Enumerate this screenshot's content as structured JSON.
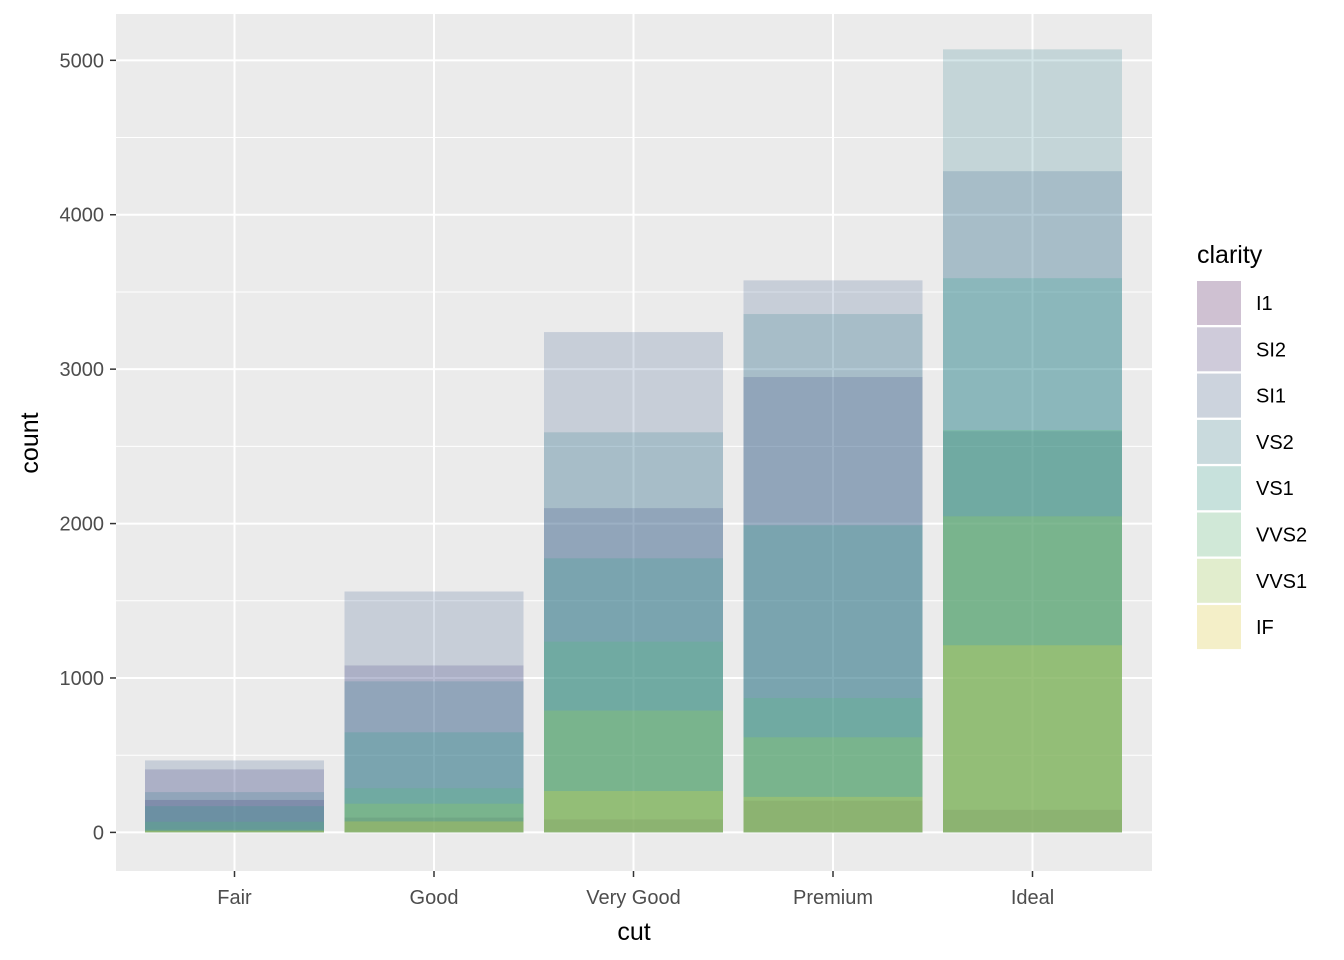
{
  "chart_data": {
    "type": "bar",
    "position": "identity",
    "bar_alpha": 0.2,
    "xlabel": "cut",
    "ylabel": "count",
    "categories": [
      "Fair",
      "Good",
      "Very Good",
      "Premium",
      "Ideal"
    ],
    "yticks": [
      0,
      1000,
      2000,
      3000,
      4000,
      5000
    ],
    "ylim": [
      -250,
      5300
    ],
    "grid": true,
    "panel_background": "#EBEBEB",
    "legend": {
      "title": "clarity",
      "position": "right"
    },
    "series": [
      {
        "name": "I1",
        "color": "#440154",
        "values": [
          210,
          96,
          84,
          205,
          146
        ]
      },
      {
        "name": "SI2",
        "color": "#46337E",
        "values": [
          408,
          1081,
          2100,
          2949,
          2598
        ]
      },
      {
        "name": "SI1",
        "color": "#365C8D",
        "values": [
          466,
          1560,
          3240,
          3575,
          4282
        ]
      },
      {
        "name": "VS2",
        "color": "#277F8E",
        "values": [
          261,
          978,
          2591,
          3357,
          5071
        ]
      },
      {
        "name": "VS1",
        "color": "#1FA187",
        "values": [
          170,
          648,
          1775,
          1989,
          3589
        ]
      },
      {
        "name": "VVS2",
        "color": "#4AC16D",
        "values": [
          69,
          286,
          1235,
          870,
          2606
        ]
      },
      {
        "name": "VVS1",
        "color": "#9FDA3A",
        "values": [
          17,
          186,
          789,
          616,
          2047
        ]
      },
      {
        "name": "IF",
        "color": "#FDE725",
        "values": [
          9,
          71,
          268,
          230,
          1212
        ]
      }
    ]
  }
}
